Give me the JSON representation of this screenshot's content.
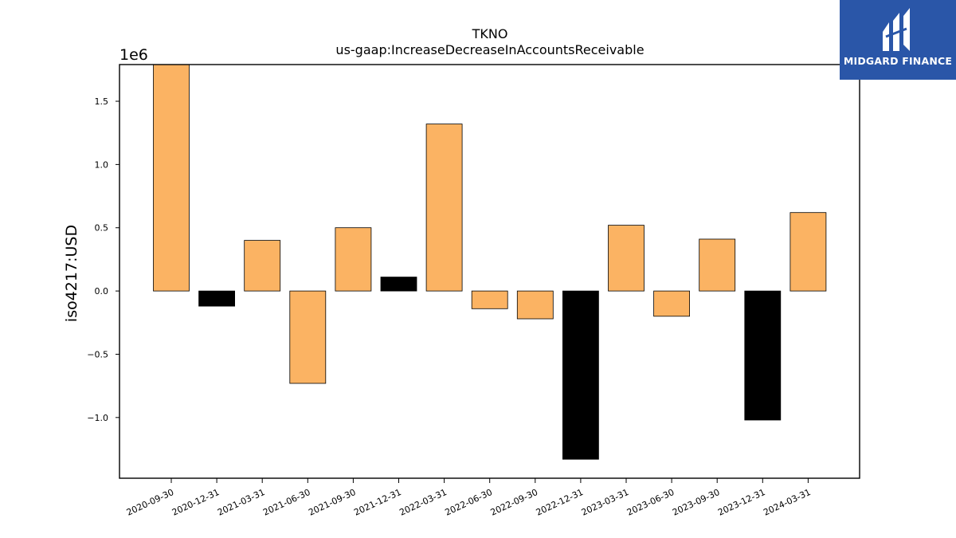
{
  "logo": {
    "text": "MIDGARD FINANCE",
    "color": "#2a56a8"
  },
  "chart_data": {
    "type": "bar",
    "title": "TKNO",
    "subtitle": "us-gaap:IncreaseDecreaseInAccountsReceivable",
    "xlabel": "",
    "ylabel": "iso4217:USD",
    "y_multiplier_label": "1e6",
    "ylim": [
      -1.48,
      1.79
    ],
    "yticks": [
      -1.0,
      -0.5,
      0.0,
      0.5,
      1.0,
      1.5
    ],
    "ytick_labels": [
      "−1.0",
      "−0.5",
      "0.0",
      "0.5",
      "1.0",
      "1.5"
    ],
    "grid": false,
    "categories": [
      "2020-09-30",
      "2020-12-31",
      "2021-03-31",
      "2021-06-30",
      "2021-09-30",
      "2021-12-31",
      "2022-03-31",
      "2022-06-30",
      "2022-09-30",
      "2022-12-31",
      "2023-03-31",
      "2023-06-30",
      "2023-09-30",
      "2023-12-31",
      "2024-03-31"
    ],
    "values": [
      1.79,
      -0.12,
      0.4,
      -0.73,
      0.5,
      0.11,
      1.32,
      -0.14,
      -0.22,
      -1.33,
      0.52,
      -0.2,
      0.41,
      -1.02,
      0.62
    ],
    "colors": [
      "#fbb363",
      "#000000",
      "#fbb363",
      "#fbb363",
      "#fbb363",
      "#000000",
      "#fbb363",
      "#fbb363",
      "#fbb363",
      "#000000",
      "#fbb363",
      "#fbb363",
      "#fbb363",
      "#000000",
      "#fbb363"
    ]
  }
}
